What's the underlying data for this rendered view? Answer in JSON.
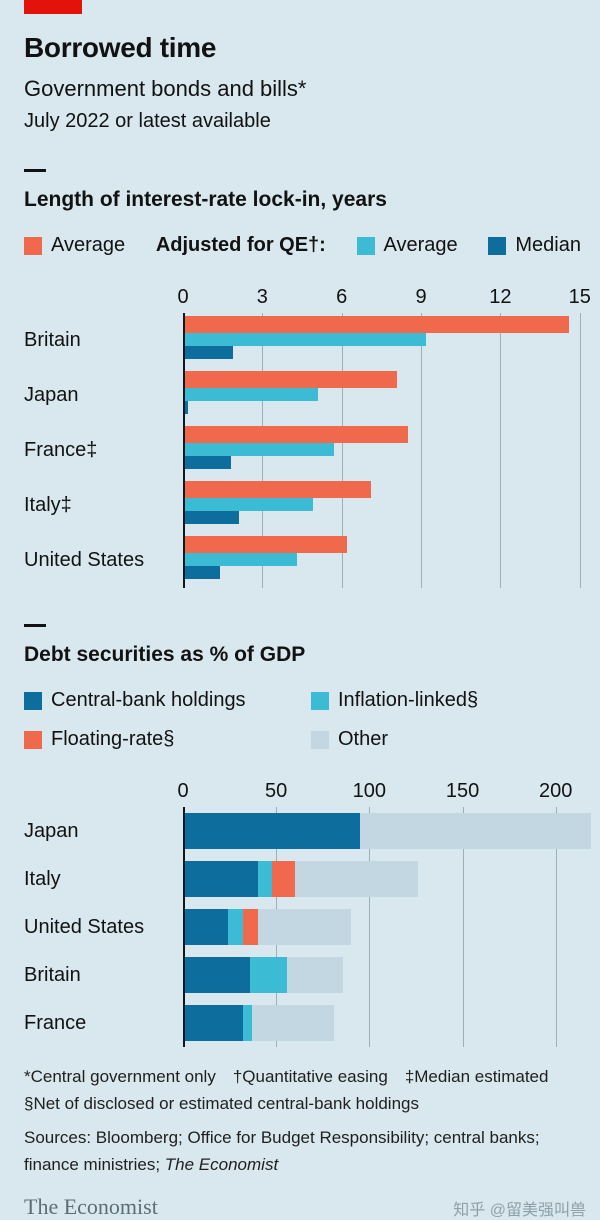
{
  "header": {
    "title": "Borrowed time",
    "subtitle": "Government bonds and bills*",
    "date_note": "July 2022 or latest available"
  },
  "colors": {
    "red": "#e3120b",
    "orange": "#f1694c",
    "cyan": "#3bbcd4",
    "dark_blue": "#0d6e9e",
    "light": "#c3d7e2",
    "background": "#d9e7ee"
  },
  "chart_data": [
    {
      "type": "bar",
      "title": "Length of interest-rate lock-in, years",
      "legend": [
        {
          "label": "Average",
          "color_key": "orange"
        },
        {
          "label": "Adjusted for QE†:",
          "color_key": null
        },
        {
          "label": "Average",
          "color_key": "cyan"
        },
        {
          "label": "Median",
          "color_key": "dark_blue"
        }
      ],
      "axis": {
        "ticks": [
          0,
          3,
          6,
          9,
          12,
          15
        ],
        "max": 15.5
      },
      "categories": [
        "Britain",
        "Japan",
        "France‡",
        "Italy‡",
        "United States"
      ],
      "series": [
        {
          "name": "Average",
          "color_key": "orange",
          "values": [
            14.6,
            8.1,
            8.5,
            7.1,
            6.2
          ]
        },
        {
          "name": "QE-adjusted average",
          "color_key": "cyan",
          "values": [
            9.2,
            5.1,
            5.7,
            4.9,
            4.3
          ]
        },
        {
          "name": "QE-adjusted median",
          "color_key": "dark_blue",
          "values": [
            1.9,
            0.2,
            1.8,
            2.1,
            1.4
          ]
        }
      ]
    },
    {
      "type": "stacked-bar",
      "title": "Debt securities as % of GDP",
      "legend": [
        {
          "label": "Central-bank holdings",
          "color_key": "dark_blue"
        },
        {
          "label": "Inflation-linked§",
          "color_key": "cyan"
        },
        {
          "label": "Floating-rate§",
          "color_key": "orange"
        },
        {
          "label": "Other",
          "color_key": "light"
        }
      ],
      "axis": {
        "ticks": [
          0,
          50,
          100,
          150,
          200
        ],
        "max": 220
      },
      "categories": [
        "Japan",
        "Italy",
        "United States",
        "Britain",
        "France"
      ],
      "series": [
        {
          "name": "Central-bank holdings",
          "color_key": "dark_blue",
          "values": [
            95,
            40,
            24,
            36,
            32
          ]
        },
        {
          "name": "Inflation-linked",
          "color_key": "cyan",
          "values": [
            0,
            8,
            8,
            20,
            5
          ]
        },
        {
          "name": "Floating-rate",
          "color_key": "orange",
          "values": [
            0,
            12,
            8,
            0,
            0
          ]
        },
        {
          "name": "Other",
          "color_key": "light",
          "values": [
            124,
            66,
            50,
            30,
            44
          ]
        }
      ]
    }
  ],
  "footer": {
    "footnotes": "*Central government only †Quantitative easing ‡Median estimated §Net of disclosed or estimated central-bank holdings",
    "sources": "Sources: Bloomberg; Office for Budget Responsibility; central banks; finance ministries; ",
    "sources_italic": "The Economist",
    "logo": "The Economist",
    "watermark": "知乎 @留美强叫兽"
  }
}
